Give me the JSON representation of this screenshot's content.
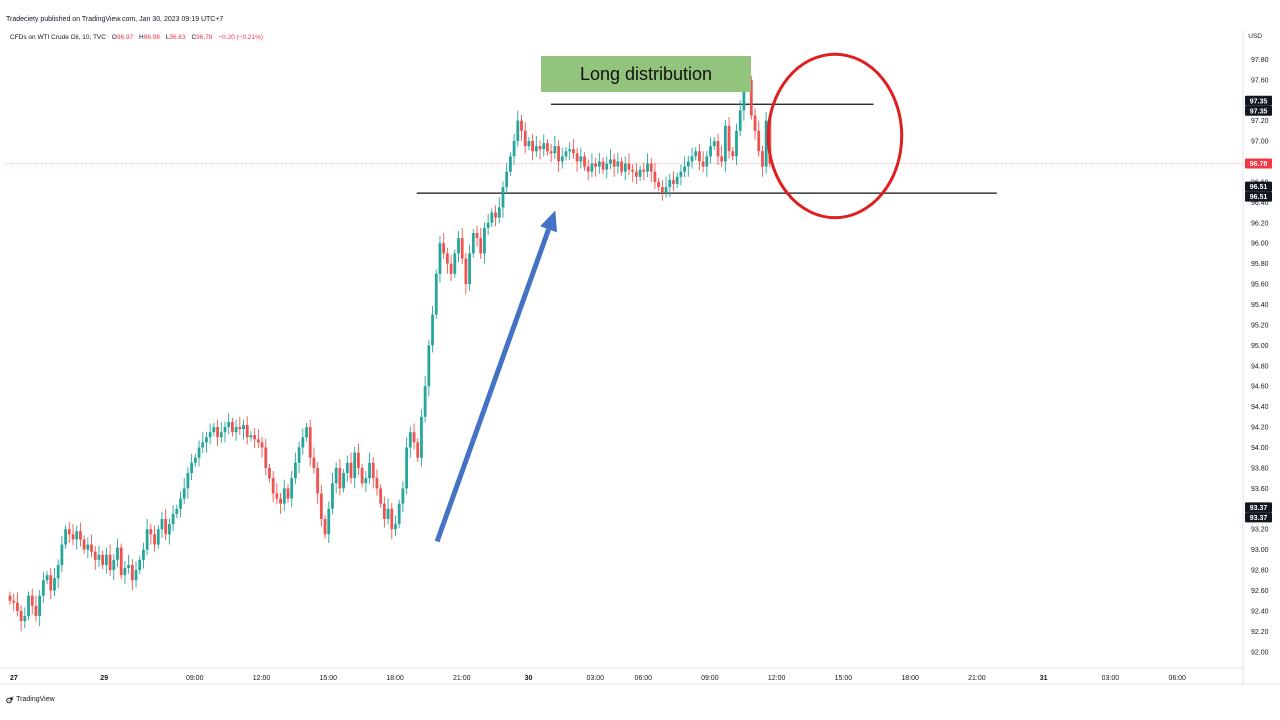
{
  "header": {
    "published": "Tradeciety published on TradingView.com, Jan 30, 2023 09:19 UTC+7"
  },
  "legend": {
    "symbol": "CFDs on WTI Crude Oil, 10, TVC",
    "o_label": "O",
    "o_value": "96.97",
    "h_label": "H",
    "h_value": "96.98",
    "l_label": "L",
    "l_value": "96.63",
    "c_label": "C",
    "c_value": "96.78",
    "change": "−0.20 (−0.21%)"
  },
  "currency": "USD",
  "annotation": {
    "text": "Long distribution"
  },
  "footer": {
    "brand": "TradingView"
  },
  "colors": {
    "up": "#26a69a",
    "down": "#ef5350",
    "arrow": "#4472c4",
    "circle": "#e02020",
    "annotation_bg": "#93c47d",
    "current_price": "#f23645"
  },
  "chart_data": {
    "type": "candlestick",
    "ylim": [
      91.9,
      97.95
    ],
    "y_ticks": [
      "92.00",
      "92.20",
      "92.40",
      "92.60",
      "92.80",
      "93.00",
      "93.20",
      "93.40",
      "93.60",
      "93.80",
      "94.00",
      "94.20",
      "94.40",
      "94.60",
      "94.80",
      "95.00",
      "95.20",
      "95.40",
      "95.60",
      "95.80",
      "96.00",
      "96.20",
      "96.40",
      "96.60",
      "96.80",
      "97.00",
      "97.20",
      "97.40",
      "97.60",
      "97.80"
    ],
    "x_ticks": [
      "27",
      "29",
      "09:00",
      "12:00",
      "15:00",
      "18:00",
      "21:00",
      "30",
      "03:00",
      "06:00",
      "09:00",
      "12:00",
      "15:00",
      "18:00",
      "21:00",
      "31",
      "03:00",
      "06:00"
    ],
    "x_tick_fraction": [
      0.0,
      0.0793,
      0.1555,
      0.2117,
      0.2679,
      0.3241,
      0.3803,
      0.4365,
      0.4927,
      0.5331,
      0.5891,
      0.6453,
      0.7015,
      0.7577,
      0.8139,
      0.8701,
      0.9263,
      0.9825
    ],
    "price_tags": [
      {
        "label": "97.35",
        "value": 97.35,
        "style": "dark"
      },
      {
        "label": "97.35",
        "value": 97.35,
        "style": "dark",
        "stack": 1
      },
      {
        "label": "96.78",
        "value": 96.78,
        "style": "current"
      },
      {
        "label": "96.51",
        "value": 96.51,
        "style": "dark"
      },
      {
        "label": "96.51",
        "value": 96.51,
        "style": "dark",
        "stack": 1
      },
      {
        "label": "93.37",
        "value": 93.37,
        "style": "dark"
      },
      {
        "label": "93.37",
        "value": 93.37,
        "style": "dark",
        "stack": 1
      }
    ],
    "horizontal_lines": [
      {
        "value": 97.36,
        "x_range": [
          0.4554,
          0.7269
        ]
      },
      {
        "value": 96.49,
        "x_range": [
          0.3424,
          0.8306
        ]
      }
    ],
    "current_price_line": 96.78,
    "arrow": {
      "from": [
        0.3595,
        93.08
      ],
      "to": [
        0.459,
        96.32
      ]
    },
    "circle": {
      "center": [
        0.6944,
        97.05
      ],
      "rx": 0.0562,
      "ry_value": 0.8
    },
    "candle_anchor_x": 0.0,
    "candle_step": 0.00312,
    "closes": [
      92.5,
      92.48,
      92.4,
      92.3,
      92.35,
      92.55,
      92.45,
      92.35,
      92.55,
      92.7,
      92.75,
      92.6,
      92.72,
      92.85,
      93.05,
      93.2,
      93.15,
      93.1,
      93.18,
      93.1,
      93.0,
      93.05,
      92.98,
      92.9,
      92.95,
      92.85,
      92.95,
      92.8,
      92.9,
      93.02,
      92.75,
      92.82,
      92.85,
      92.7,
      92.8,
      92.9,
      93.0,
      93.2,
      93.15,
      93.05,
      93.2,
      93.3,
      93.15,
      93.25,
      93.35,
      93.4,
      93.5,
      93.6,
      93.75,
      93.85,
      93.9,
      94.0,
      94.05,
      94.1,
      94.15,
      94.2,
      94.1,
      94.15,
      94.2,
      94.25,
      94.15,
      94.2,
      94.18,
      94.22,
      94.1,
      94.12,
      94.08,
      94.05,
      94.0,
      93.8,
      93.7,
      93.55,
      93.5,
      93.45,
      93.6,
      93.5,
      93.7,
      93.85,
      94.0,
      94.1,
      94.2,
      93.9,
      93.8,
      93.55,
      93.3,
      93.15,
      93.4,
      93.65,
      93.8,
      93.6,
      93.75,
      93.85,
      93.7,
      93.95,
      93.8,
      93.65,
      93.7,
      93.85,
      93.7,
      93.6,
      93.45,
      93.3,
      93.4,
      93.2,
      93.25,
      93.45,
      93.6,
      94.0,
      94.15,
      94.05,
      93.9,
      94.3,
      94.6,
      95.0,
      95.3,
      95.7,
      96.0,
      95.9,
      95.8,
      95.7,
      95.9,
      96.05,
      95.85,
      95.6,
      95.9,
      96.1,
      96.05,
      95.9,
      96.15,
      96.2,
      96.3,
      96.25,
      96.35,
      96.55,
      96.7,
      96.85,
      97.0,
      97.2,
      97.1,
      96.95,
      97.0,
      96.9,
      96.95,
      96.92,
      96.98,
      96.9,
      96.88,
      96.95,
      96.8,
      96.85,
      96.9,
      96.92,
      96.88,
      96.8,
      96.85,
      96.75,
      96.7,
      96.78,
      96.75,
      96.8,
      96.72,
      96.78,
      96.82,
      96.75,
      96.8,
      96.7,
      96.78,
      96.72,
      96.7,
      96.65,
      96.72,
      96.7,
      96.78,
      96.7,
      96.6,
      96.55,
      96.5,
      96.55,
      96.62,
      96.58,
      96.65,
      96.7,
      96.75,
      96.8,
      96.85,
      96.9,
      96.8,
      96.75,
      96.85,
      96.95,
      97.0,
      96.85,
      96.8,
      97.15,
      96.9,
      96.85,
      97.1,
      97.3,
      97.7,
      97.6,
      97.25,
      97.1,
      96.9,
      96.75,
      97.2,
      96.78
    ]
  }
}
